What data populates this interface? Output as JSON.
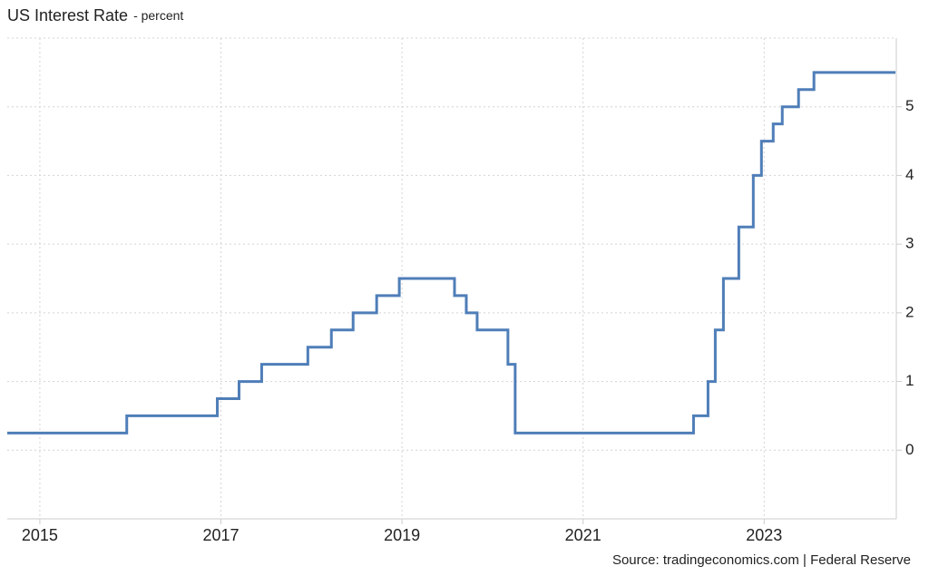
{
  "chart_data": {
    "type": "step-line",
    "title": "US Interest Rate",
    "subtitle": "- percent",
    "source": "Source: tradingeconomics.com | Federal Reserve",
    "xlim": [
      2014.64,
      2024.46
    ],
    "xticks": [
      2015,
      2017,
      2019,
      2021,
      2023
    ],
    "ylim": [
      -1,
      6
    ],
    "yticks": [
      0,
      1,
      2,
      3,
      4,
      5
    ],
    "grid": true,
    "series": [
      {
        "name": "US Interest Rate",
        "color": "#4f7eb8",
        "x": [
          2014.64,
          2015.96,
          2016.96,
          2017.2,
          2017.45,
          2017.96,
          2018.22,
          2018.46,
          2018.72,
          2018.97,
          2019.58,
          2019.71,
          2019.83,
          2020.17,
          2020.25,
          2022.22,
          2022.38,
          2022.46,
          2022.55,
          2022.72,
          2022.88,
          2022.97,
          2023.1,
          2023.2,
          2023.38,
          2023.55,
          2024.45
        ],
        "values": [
          0.25,
          0.5,
          0.75,
          1.0,
          1.25,
          1.5,
          1.75,
          2.0,
          2.25,
          2.5,
          2.25,
          2.0,
          1.75,
          1.25,
          0.25,
          0.5,
          1.0,
          1.75,
          2.5,
          3.25,
          4.0,
          4.5,
          4.75,
          5.0,
          5.25,
          5.5,
          5.5
        ]
      }
    ]
  }
}
